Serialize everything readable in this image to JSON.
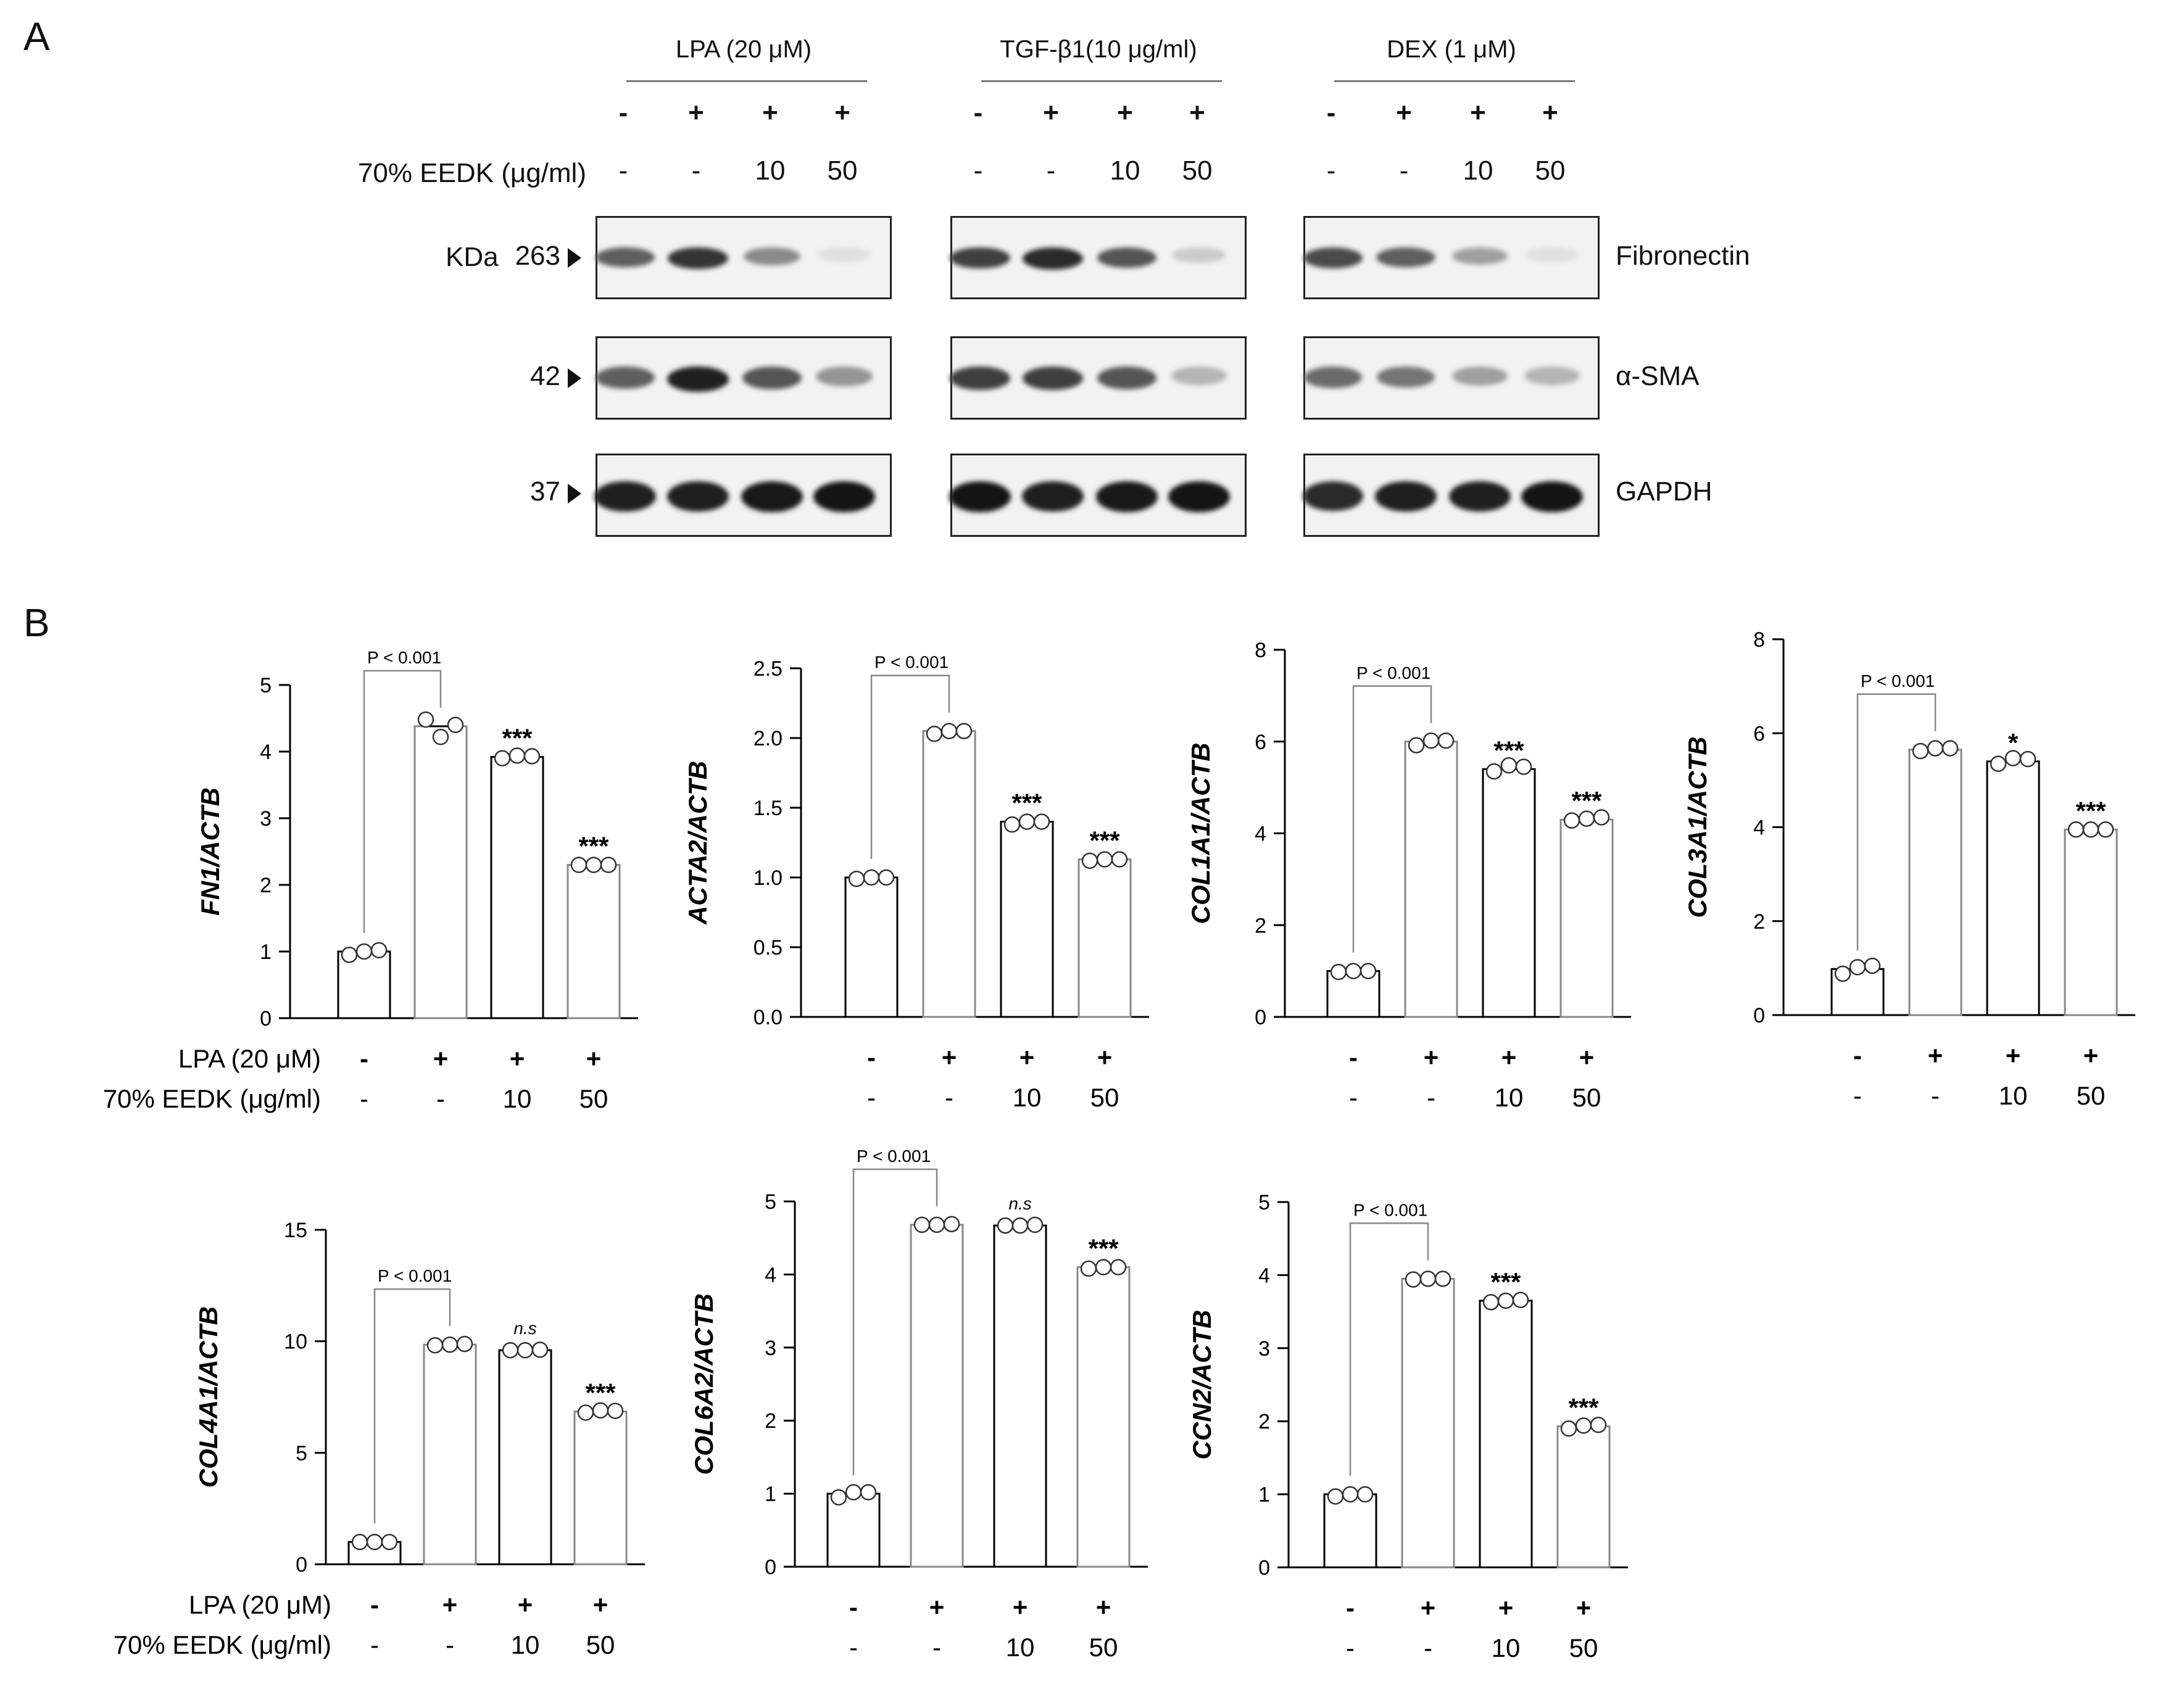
{
  "panel_a_letter": "A",
  "panel_b_letter": "B",
  "western": {
    "groups": [
      {
        "label": "LPA (20 μM)",
        "signs": [
          "-",
          "+",
          "+",
          "+"
        ],
        "doses": [
          "-",
          "-",
          "10",
          "50"
        ]
      },
      {
        "label": "TGF-β1(10 μg/ml)",
        "signs": [
          "-",
          "+",
          "+",
          "+"
        ],
        "doses": [
          "-",
          "-",
          "10",
          "50"
        ]
      },
      {
        "label": "DEX (1 μM)",
        "signs": [
          "-",
          "+",
          "+",
          "+"
        ],
        "doses": [
          "-",
          "-",
          "10",
          "50"
        ]
      }
    ],
    "eedk_label": "70% EEDK (μg/ml)",
    "kda_label": "KDa",
    "rows": [
      {
        "marker": "263",
        "protein": "Fibronectin",
        "intensity": [
          [
            0.65,
            0.85,
            0.45,
            0.05
          ],
          [
            0.8,
            0.9,
            0.7,
            0.15
          ],
          [
            0.75,
            0.65,
            0.35,
            0.05
          ]
        ]
      },
      {
        "marker": "42",
        "protein": "α-SMA",
        "intensity": [
          [
            0.65,
            0.95,
            0.7,
            0.4
          ],
          [
            0.8,
            0.8,
            0.7,
            0.25
          ],
          [
            0.6,
            0.55,
            0.35,
            0.25
          ]
        ]
      },
      {
        "marker": "37",
        "protein": "GAPDH",
        "intensity": [
          [
            0.95,
            0.95,
            0.98,
            1.0
          ],
          [
            1.0,
            0.95,
            0.98,
            1.0
          ],
          [
            0.9,
            0.95,
            0.95,
            1.0
          ]
        ]
      }
    ]
  },
  "chart_data": [
    {
      "type": "bar",
      "ylabel": "FN1/ACTB",
      "yticks": [
        "0",
        "1",
        "2",
        "3",
        "4",
        "5"
      ],
      "ylim": [
        0,
        5
      ],
      "values": [
        1.0,
        4.38,
        3.92,
        2.3
      ],
      "points": [
        [
          0.95,
          1.0,
          1.02
        ],
        [
          4.48,
          4.22,
          4.4
        ],
        [
          3.9,
          3.94,
          3.93
        ],
        [
          2.3,
          2.3,
          2.3
        ]
      ],
      "pvalue": "P < 0.001",
      "annotations": [
        "",
        "",
        "***",
        "***"
      ]
    },
    {
      "type": "bar",
      "ylabel": "ACTA2/ACTB",
      "yticks": [
        "0.0",
        "0.5",
        "1.0",
        "1.5",
        "2.0",
        "2.5"
      ],
      "ylim": [
        0,
        2.5
      ],
      "values": [
        1.0,
        2.05,
        1.4,
        1.13
      ],
      "points": [
        [
          0.99,
          1.0,
          1.0
        ],
        [
          2.03,
          2.05,
          2.05
        ],
        [
          1.38,
          1.4,
          1.4
        ],
        [
          1.12,
          1.13,
          1.13
        ]
      ],
      "pvalue": "P < 0.001",
      "annotations": [
        "",
        "",
        "***",
        "***"
      ]
    },
    {
      "type": "bar",
      "ylabel": "COL1A1/ACTB",
      "yticks": [
        "0",
        "2",
        "4",
        "6",
        "8"
      ],
      "ylim": [
        0,
        8
      ],
      "values": [
        1.0,
        6.0,
        5.4,
        4.3
      ],
      "points": [
        [
          0.98,
          1.0,
          1.0
        ],
        [
          5.92,
          6.02,
          6.02
        ],
        [
          5.35,
          5.48,
          5.45
        ],
        [
          4.28,
          4.32,
          4.35
        ]
      ],
      "pvalue": "P < 0.001",
      "annotations": [
        "",
        "",
        "***",
        "***"
      ]
    },
    {
      "type": "bar",
      "ylabel": "COL3A1/ACTB",
      "yticks": [
        "0",
        "2",
        "4",
        "6",
        "8"
      ],
      "ylim": [
        0,
        8
      ],
      "values": [
        0.98,
        5.65,
        5.4,
        3.95
      ],
      "points": [
        [
          0.88,
          1.02,
          1.05
        ],
        [
          5.62,
          5.68,
          5.68
        ],
        [
          5.35,
          5.47,
          5.45
        ],
        [
          3.95,
          3.95,
          3.95
        ]
      ],
      "pvalue": "P < 0.001",
      "annotations": [
        "",
        "",
        "*",
        "***"
      ]
    },
    {
      "type": "bar",
      "ylabel": "COL4A1/ACTB",
      "yticks": [
        "0",
        "5",
        "10",
        "15"
      ],
      "ylim": [
        0,
        15
      ],
      "values": [
        1.0,
        9.85,
        9.6,
        6.85
      ],
      "points": [
        [
          1.0,
          1.0,
          1.0
        ],
        [
          9.82,
          9.85,
          9.88
        ],
        [
          9.6,
          9.6,
          9.62
        ],
        [
          6.8,
          6.9,
          6.88
        ]
      ],
      "pvalue": "P < 0.001",
      "annotations": [
        "",
        "",
        "n.s",
        "***"
      ]
    },
    {
      "type": "bar",
      "ylabel": "COL6A2/ACTB",
      "yticks": [
        "0",
        "1",
        "2",
        "3",
        "4",
        "5"
      ],
      "ylim": [
        0,
        5
      ],
      "values": [
        1.0,
        4.68,
        4.67,
        4.1
      ],
      "points": [
        [
          0.95,
          1.02,
          1.02
        ],
        [
          4.68,
          4.68,
          4.69
        ],
        [
          4.67,
          4.67,
          4.68
        ],
        [
          4.08,
          4.1,
          4.1
        ]
      ],
      "pvalue": "P < 0.001",
      "annotations": [
        "",
        "",
        "n.s",
        "***"
      ]
    },
    {
      "type": "bar",
      "ylabel": "CCN2/ACTB",
      "yticks": [
        "0",
        "1",
        "2",
        "3",
        "4",
        "5"
      ],
      "ylim": [
        0,
        5
      ],
      "values": [
        1.0,
        3.95,
        3.65,
        1.93
      ],
      "points": [
        [
          0.97,
          1.0,
          1.0
        ],
        [
          3.94,
          3.95,
          3.95
        ],
        [
          3.63,
          3.65,
          3.66
        ],
        [
          1.9,
          1.94,
          1.95
        ]
      ],
      "pvalue": "P < 0.001",
      "annotations": [
        "",
        "",
        "***",
        "***"
      ]
    }
  ],
  "chart_x_labels": {
    "lpa_label": "LPA (20 μM)",
    "eedk_label": "70% EEDK (μg/ml)",
    "signs": [
      "-",
      "+",
      "+",
      "+"
    ],
    "doses": [
      "-",
      "-",
      "10",
      "50"
    ]
  }
}
